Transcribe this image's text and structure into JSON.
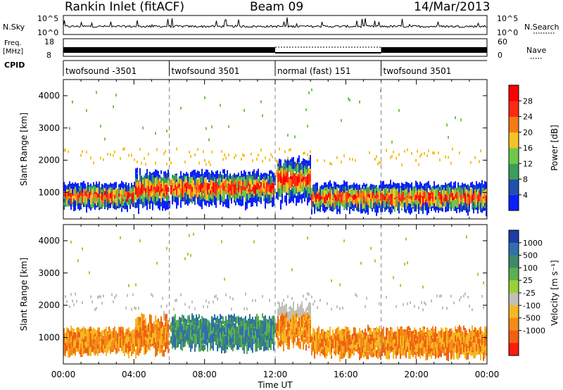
{
  "header": {
    "station": "Rankin Inlet (fitACF)",
    "beam": "Beam 09",
    "date": "14/Mar/2013"
  },
  "strip_labels": {
    "nsky": "N.Sky",
    "nsky_top": "10^5",
    "nsky_bottom": "10^0",
    "nsearch": "N.Search",
    "nsearch_top": "10^5",
    "nsearch_bottom": "10^0",
    "freq_line1": "Freq.",
    "freq_line2": "[MHz]",
    "freq_top": "18",
    "freq_bottom": "8",
    "nave_top": "60",
    "nave_bottom": "0",
    "nave": "Nave",
    "cpid": "CPID"
  },
  "cpid_segments": [
    {
      "label": "twofsound -3501",
      "start": 0,
      "end": 6
    },
    {
      "label": "twofsound 3501",
      "start": 6,
      "end": 12
    },
    {
      "label": "normal (fast) 151",
      "start": 12,
      "end": 18
    },
    {
      "label": "twofsound 3501",
      "start": 18,
      "end": 24
    }
  ],
  "chart_data": [
    {
      "type": "heatmap",
      "name": "power",
      "ylabel": "Slant Range [km]",
      "xlabel": "",
      "xlim": [
        0,
        24
      ],
      "ylim": [
        180,
        4500
      ],
      "yticks": [
        1000,
        2000,
        3000,
        4000
      ],
      "colorbar_label": "Power [dB]",
      "colorbar_ticks": [
        "4",
        "8",
        "12",
        "16",
        "20",
        "24",
        "28"
      ],
      "colors": [
        "#0a20ff",
        "#2050b0",
        "#3c9e5a",
        "#6ec84a",
        "#f6c228",
        "#f47a14",
        "#ff2a10",
        "#ff0000"
      ]
    },
    {
      "type": "heatmap",
      "name": "velocity",
      "ylabel": "Slant Range [km]",
      "xlabel": "Time UT",
      "xlim": [
        0,
        24
      ],
      "ylim": [
        180,
        4500
      ],
      "yticks": [
        1000,
        2000,
        3000,
        4000
      ],
      "xticks": [
        "00:00",
        "04:00",
        "08:00",
        "12:00",
        "16:00",
        "20:00",
        "00:00"
      ],
      "colorbar_label": "Velocity [m s⁻¹]",
      "colorbar_ticks": [
        "1000",
        "500",
        "100",
        "25",
        "-25",
        "-100",
        "-500",
        "-1000"
      ],
      "colors": [
        "#1f3ca8",
        "#2f6fb0",
        "#3d8a6a",
        "#5ab050",
        "#9ad038",
        "#c0c0b8",
        "#f6b820",
        "#f48a18",
        "#f06014",
        "#ff1a10"
      ]
    }
  ]
}
